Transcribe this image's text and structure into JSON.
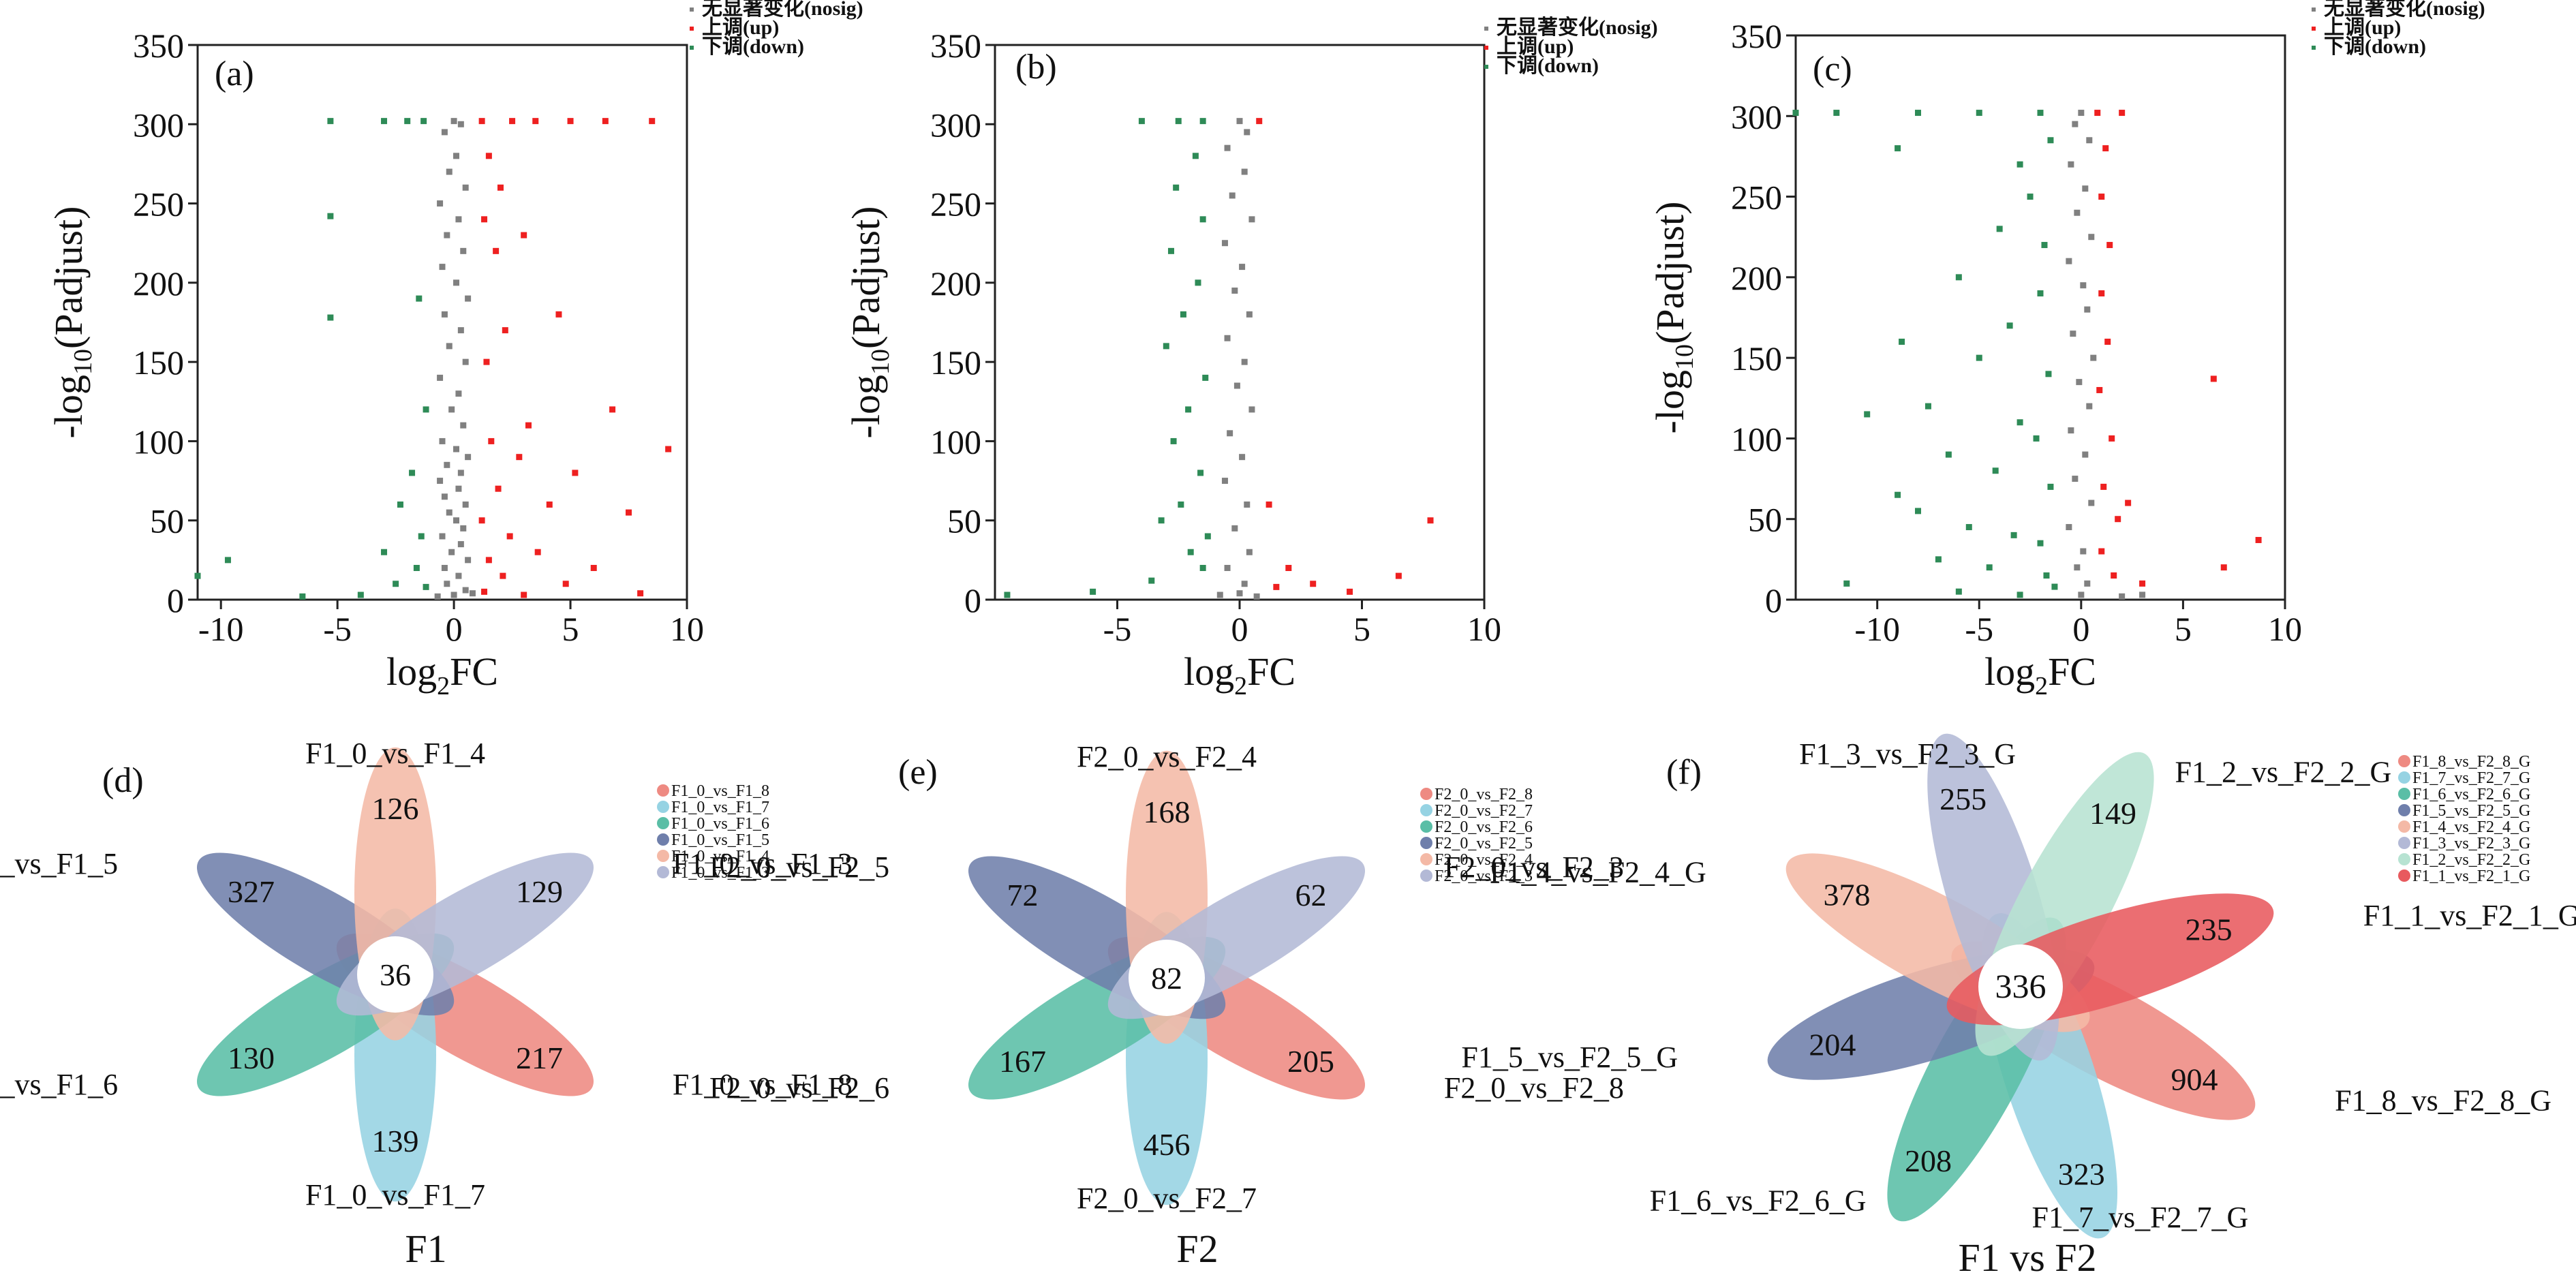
{
  "chart_data": [
    {
      "type": "scatter",
      "panel": "(a)",
      "xlabel_main": "log",
      "xlabel_sub": "2",
      "xlabel_tail": "FC",
      "ylabel_head": "-log",
      "ylabel_sub": "10",
      "ylabel_tail": "(Padjust)",
      "xlim": [
        -11,
        10
      ],
      "ylim": [
        0,
        350
      ],
      "xticks": [
        -10,
        -5,
        0,
        5,
        10
      ],
      "yticks": [
        0,
        50,
        100,
        150,
        200,
        250,
        300,
        350
      ],
      "legend": [
        {
          "name": "无显著变化(nosig)",
          "color": "#808080"
        },
        {
          "name": "上调(up)",
          "color": "#ee2020"
        },
        {
          "name": "下调(down)",
          "color": "#2e8b57"
        }
      ],
      "points": {
        "nosig": [
          [
            0,
            302
          ],
          [
            0.3,
            300
          ],
          [
            -0.4,
            295
          ],
          [
            0.1,
            280
          ],
          [
            -0.2,
            270
          ],
          [
            0.5,
            260
          ],
          [
            -0.6,
            250
          ],
          [
            0.2,
            240
          ],
          [
            -0.3,
            230
          ],
          [
            0.4,
            220
          ],
          [
            -0.5,
            210
          ],
          [
            0.1,
            200
          ],
          [
            0.6,
            190
          ],
          [
            -0.4,
            180
          ],
          [
            0.3,
            170
          ],
          [
            -0.2,
            160
          ],
          [
            0.5,
            150
          ],
          [
            -0.6,
            140
          ],
          [
            0.2,
            130
          ],
          [
            -0.1,
            120
          ],
          [
            0.4,
            110
          ],
          [
            -0.5,
            100
          ],
          [
            0.1,
            95
          ],
          [
            0.6,
            90
          ],
          [
            -0.3,
            85
          ],
          [
            0.3,
            80
          ],
          [
            -0.6,
            75
          ],
          [
            0.2,
            70
          ],
          [
            -0.4,
            65
          ],
          [
            0.5,
            60
          ],
          [
            -0.2,
            55
          ],
          [
            0.1,
            50
          ],
          [
            0.4,
            45
          ],
          [
            -0.5,
            40
          ],
          [
            0.3,
            35
          ],
          [
            -0.1,
            30
          ],
          [
            0.6,
            25
          ],
          [
            -0.4,
            20
          ],
          [
            0.2,
            15
          ],
          [
            -0.3,
            10
          ],
          [
            0.5,
            6
          ],
          [
            0,
            3
          ],
          [
            -0.7,
            2
          ],
          [
            0.8,
            4
          ]
        ],
        "up": [
          [
            1.2,
            302
          ],
          [
            2.5,
            302
          ],
          [
            3.5,
            302
          ],
          [
            5,
            302
          ],
          [
            6.5,
            302
          ],
          [
            8.5,
            302
          ],
          [
            1.5,
            280
          ],
          [
            2,
            260
          ],
          [
            1.3,
            240
          ],
          [
            3,
            230
          ],
          [
            1.8,
            220
          ],
          [
            4.5,
            180
          ],
          [
            2.2,
            170
          ],
          [
            1.4,
            150
          ],
          [
            6.8,
            120
          ],
          [
            3.2,
            110
          ],
          [
            1.6,
            100
          ],
          [
            9.2,
            95
          ],
          [
            2.8,
            90
          ],
          [
            5.2,
            80
          ],
          [
            1.9,
            70
          ],
          [
            4.1,
            60
          ],
          [
            7.5,
            55
          ],
          [
            1.2,
            50
          ],
          [
            2.4,
            40
          ],
          [
            3.6,
            30
          ],
          [
            1.5,
            25
          ],
          [
            6,
            20
          ],
          [
            2.1,
            15
          ],
          [
            4.8,
            10
          ],
          [
            1.3,
            5
          ],
          [
            3,
            3
          ],
          [
            8,
            4
          ]
        ],
        "down": [
          [
            -5.3,
            302
          ],
          [
            -2,
            302
          ],
          [
            -3,
            302
          ],
          [
            -1.3,
            302
          ],
          [
            -5.3,
            242
          ],
          [
            -5.3,
            178
          ],
          [
            -1.5,
            190
          ],
          [
            -1.2,
            120
          ],
          [
            -1.8,
            80
          ],
          [
            -2.3,
            60
          ],
          [
            -1.4,
            40
          ],
          [
            -3,
            30
          ],
          [
            -9.7,
            25
          ],
          [
            -11,
            15
          ],
          [
            -1.6,
            20
          ],
          [
            -2.5,
            10
          ],
          [
            -1.2,
            8
          ],
          [
            -6.5,
            2
          ],
          [
            -4,
            3
          ]
        ]
      }
    },
    {
      "type": "scatter",
      "panel": "(b)",
      "xlabel_main": "log",
      "xlabel_sub": "2",
      "xlabel_tail": "FC",
      "ylabel_head": "-log",
      "ylabel_sub": "10",
      "ylabel_tail": "(Padjust)",
      "xlim": [
        -10,
        10
      ],
      "ylim": [
        0,
        350
      ],
      "xticks": [
        -5,
        0,
        5,
        10
      ],
      "yticks": [
        0,
        50,
        100,
        150,
        200,
        250,
        300,
        350
      ],
      "legend": [
        {
          "name": "无显著变化(nosig)",
          "color": "#808080"
        },
        {
          "name": "上调(up)",
          "color": "#ee2020"
        },
        {
          "name": "下调(down)",
          "color": "#2e8b57"
        }
      ],
      "points": {
        "nosig": [
          [
            0,
            302
          ],
          [
            0.3,
            295
          ],
          [
            -0.5,
            285
          ],
          [
            0.2,
            270
          ],
          [
            -0.3,
            255
          ],
          [
            0.5,
            240
          ],
          [
            -0.6,
            225
          ],
          [
            0.1,
            210
          ],
          [
            -0.2,
            195
          ],
          [
            0.4,
            180
          ],
          [
            -0.5,
            165
          ],
          [
            0.2,
            150
          ],
          [
            -0.1,
            135
          ],
          [
            0.5,
            120
          ],
          [
            -0.4,
            105
          ],
          [
            0.1,
            90
          ],
          [
            -0.6,
            75
          ],
          [
            0.3,
            60
          ],
          [
            -0.2,
            45
          ],
          [
            0.4,
            30
          ],
          [
            -0.5,
            20
          ],
          [
            0.2,
            10
          ],
          [
            0,
            4
          ],
          [
            -0.8,
            3
          ],
          [
            0.7,
            2
          ]
        ],
        "up": [
          [
            0.8,
            302
          ],
          [
            1.2,
            60
          ],
          [
            2,
            20
          ],
          [
            3,
            10
          ],
          [
            4.5,
            5
          ],
          [
            7.8,
            50
          ],
          [
            6.5,
            15
          ],
          [
            1.5,
            8
          ]
        ],
        "down": [
          [
            -4,
            302
          ],
          [
            -2.5,
            302
          ],
          [
            -1.5,
            302
          ],
          [
            -1.8,
            280
          ],
          [
            -2.6,
            260
          ],
          [
            -1.5,
            240
          ],
          [
            -2.8,
            220
          ],
          [
            -1.7,
            200
          ],
          [
            -2.3,
            180
          ],
          [
            -3,
            160
          ],
          [
            -1.4,
            140
          ],
          [
            -2.1,
            120
          ],
          [
            -2.7,
            100
          ],
          [
            -1.6,
            80
          ],
          [
            -2.4,
            60
          ],
          [
            -3.2,
            50
          ],
          [
            -1.3,
            40
          ],
          [
            -2,
            30
          ],
          [
            -1.5,
            20
          ],
          [
            -3.6,
            12
          ],
          [
            -6,
            5
          ],
          [
            -9.5,
            3
          ]
        ]
      }
    },
    {
      "type": "scatter",
      "panel": "(c)",
      "xlabel_main": "log",
      "xlabel_sub": "2",
      "xlabel_tail": "FC",
      "ylabel_head": "-log",
      "ylabel_sub": "10",
      "ylabel_tail": "(Padjust)",
      "xlim": [
        -14,
        10
      ],
      "ylim": [
        0,
        350
      ],
      "xticks": [
        -10,
        -5,
        0,
        5,
        10
      ],
      "yticks": [
        0,
        50,
        100,
        150,
        200,
        250,
        300,
        350
      ],
      "legend": [
        {
          "name": "无显著变化(nosig)",
          "color": "#808080"
        },
        {
          "name": "上调(up)",
          "color": "#ee2020"
        },
        {
          "name": "下调(down)",
          "color": "#2e8b57"
        }
      ],
      "points": {
        "nosig": [
          [
            0,
            302
          ],
          [
            -0.3,
            295
          ],
          [
            0.4,
            285
          ],
          [
            -0.5,
            270
          ],
          [
            0.2,
            255
          ],
          [
            -0.2,
            240
          ],
          [
            0.5,
            225
          ],
          [
            -0.6,
            210
          ],
          [
            0.1,
            195
          ],
          [
            0.3,
            180
          ],
          [
            -0.4,
            165
          ],
          [
            0.6,
            150
          ],
          [
            -0.1,
            135
          ],
          [
            0.4,
            120
          ],
          [
            -0.5,
            105
          ],
          [
            0.2,
            90
          ],
          [
            -0.3,
            75
          ],
          [
            0.5,
            60
          ],
          [
            -0.6,
            45
          ],
          [
            0.1,
            30
          ],
          [
            -0.2,
            20
          ],
          [
            0.3,
            10
          ],
          [
            0,
            3
          ],
          [
            2,
            2
          ],
          [
            3,
            3
          ]
        ],
        "up": [
          [
            0.8,
            302
          ],
          [
            2,
            302
          ],
          [
            1.2,
            280
          ],
          [
            1,
            250
          ],
          [
            1.4,
            220
          ],
          [
            1,
            190
          ],
          [
            1.3,
            160
          ],
          [
            0.9,
            130
          ],
          [
            1.5,
            100
          ],
          [
            1.1,
            70
          ],
          [
            1.8,
            50
          ],
          [
            1,
            30
          ],
          [
            1.6,
            15
          ],
          [
            6.5,
            137
          ],
          [
            8.7,
            37
          ],
          [
            2.3,
            60
          ],
          [
            3,
            10
          ],
          [
            7,
            20
          ]
        ],
        "down": [
          [
            -14,
            302
          ],
          [
            -12,
            302
          ],
          [
            -8,
            302
          ],
          [
            -5,
            302
          ],
          [
            -2,
            302
          ],
          [
            -9,
            280
          ],
          [
            -3,
            270
          ],
          [
            -1.5,
            285
          ],
          [
            -2.5,
            250
          ],
          [
            -4,
            230
          ],
          [
            -1.8,
            220
          ],
          [
            -6,
            200
          ],
          [
            -2,
            190
          ],
          [
            -3.5,
            170
          ],
          [
            -8.8,
            160
          ],
          [
            -5,
            150
          ],
          [
            -1.6,
            140
          ],
          [
            -10.5,
            115
          ],
          [
            -7.5,
            120
          ],
          [
            -3,
            110
          ],
          [
            -2.2,
            100
          ],
          [
            -6.5,
            90
          ],
          [
            -4.2,
            80
          ],
          [
            -1.5,
            70
          ],
          [
            -9,
            65
          ],
          [
            -8,
            55
          ],
          [
            -5.5,
            45
          ],
          [
            -3.3,
            40
          ],
          [
            -2,
            35
          ],
          [
            -7,
            25
          ],
          [
            -4.5,
            20
          ],
          [
            -1.7,
            15
          ],
          [
            -11.5,
            10
          ],
          [
            -6,
            5
          ],
          [
            -3,
            3
          ],
          [
            -1.3,
            8
          ]
        ]
      }
    },
    {
      "type": "venn-flower",
      "panel": "(d)",
      "title": "F1",
      "center_value": "36",
      "petals": [
        {
          "label": "F1_0_vs_F1_8",
          "value": "217",
          "color": "#ee8a82"
        },
        {
          "label": "F1_0_vs_F1_7",
          "value": "139",
          "color": "#96d3e3"
        },
        {
          "label": "F1_0_vs_F1_6",
          "value": "130",
          "color": "#5abea6"
        },
        {
          "label": "F1_0_vs_F1_5",
          "value": "327",
          "color": "#6f7fab"
        },
        {
          "label": "F1_0_vs_F1_4",
          "value": "126",
          "color": "#f4b9a6"
        },
        {
          "label": "F1_0_vs_F1_3",
          "value": "129",
          "color": "#b3b9d6"
        }
      ]
    },
    {
      "type": "venn-flower",
      "panel": "(e)",
      "title": "F2",
      "center_value": "82",
      "petals": [
        {
          "label": "F2_0_vs_F2_8",
          "value": "205",
          "color": "#ee8a82"
        },
        {
          "label": "F2_0_vs_F2_7",
          "value": "456",
          "color": "#96d3e3"
        },
        {
          "label": "F2_0_vs_F2_6",
          "value": "167",
          "color": "#5abea6"
        },
        {
          "label": "F2_0_vs_F2_5",
          "value": "72",
          "color": "#6f7fab"
        },
        {
          "label": "F2_0_vs_F2_4",
          "value": "168",
          "color": "#f4b9a6"
        },
        {
          "label": "F2_0_vs_F2_3",
          "value": "62",
          "color": "#b3b9d6"
        }
      ]
    },
    {
      "type": "venn-flower",
      "panel": "(f)",
      "title": "F1 vs F2",
      "center_value": "336",
      "petals": [
        {
          "label": "F1_8_vs_F2_8_G",
          "value": "904",
          "color": "#ee8a82"
        },
        {
          "label": "F1_7_vs_F2_7_G",
          "value": "323",
          "color": "#96d3e3"
        },
        {
          "label": "F1_6_vs_F2_6_G",
          "value": "208",
          "color": "#5abea6"
        },
        {
          "label": "F1_5_vs_F2_5_G",
          "value": "204",
          "color": "#6f7fab"
        },
        {
          "label": "F1_4_vs_F2_4_G",
          "value": "378",
          "color": "#f4b9a6"
        },
        {
          "label": "F1_3_vs_F2_3_G",
          "value": "255",
          "color": "#b3b9d6"
        },
        {
          "label": "F1_2_vs_F2_2_G",
          "value": "149",
          "color": "#b7e3d2"
        },
        {
          "label": "F1_1_vs_F2_1_G",
          "value": "235",
          "color": "#e85a5e"
        }
      ]
    }
  ]
}
